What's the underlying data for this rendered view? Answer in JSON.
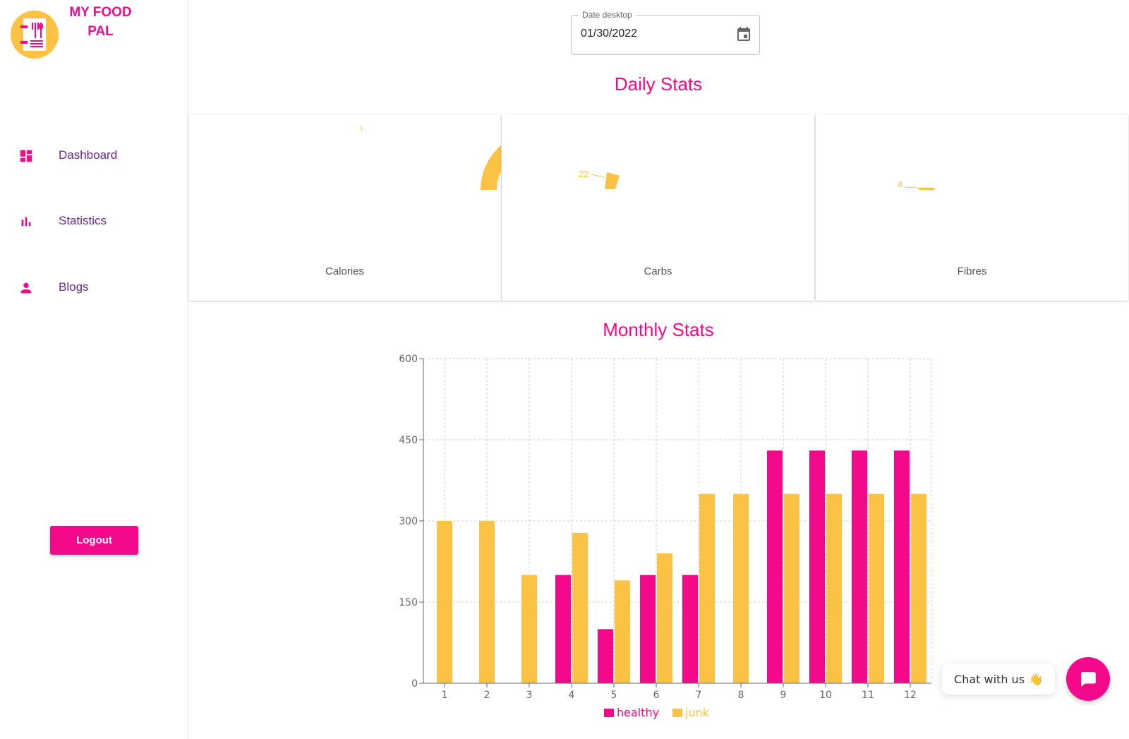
{
  "brand": {
    "name": "MY FOOD PAL",
    "line1": "MY FOOD",
    "line2": "PAL"
  },
  "sidebar": {
    "items": [
      {
        "label": "Dashboard",
        "icon": "dashboard-icon"
      },
      {
        "label": "Statistics",
        "icon": "bar-chart-icon"
      },
      {
        "label": "Blogs",
        "icon": "person-icon"
      }
    ],
    "logout_label": "Logout"
  },
  "date_picker": {
    "label": "Date desktop",
    "value": "01/30/2022"
  },
  "daily": {
    "title": "Daily Stats",
    "cards": [
      {
        "label": "Calories",
        "value_label": ""
      },
      {
        "label": "Carbs",
        "value_label": "22"
      },
      {
        "label": "Fibres",
        "value_label": "4"
      }
    ]
  },
  "monthly": {
    "title": "Monthly Stats"
  },
  "chat": {
    "label": "Chat with us",
    "emoji": "👋"
  },
  "colors": {
    "accent": "#f5098b",
    "yellow": "#fcc244",
    "nav_text": "#6a2a8a"
  },
  "chart_data": {
    "type": "bar",
    "categories": [
      "1",
      "2",
      "3",
      "4",
      "5",
      "6",
      "7",
      "8",
      "9",
      "10",
      "11",
      "12"
    ],
    "series": [
      {
        "name": "healthy",
        "values": [
          0,
          0,
          0,
          200,
          100,
          200,
          200,
          0,
          430,
          430,
          430,
          430
        ],
        "color": "#f5098b"
      },
      {
        "name": "junk",
        "values": [
          300,
          300,
          200,
          278,
          190,
          240,
          350,
          350,
          350,
          350,
          350,
          350
        ],
        "color": "#fcc244"
      }
    ],
    "ylim": [
      0,
      600
    ],
    "yticks": [
      0,
      150,
      300,
      450,
      600
    ],
    "grid": true,
    "legend": "bottom"
  }
}
